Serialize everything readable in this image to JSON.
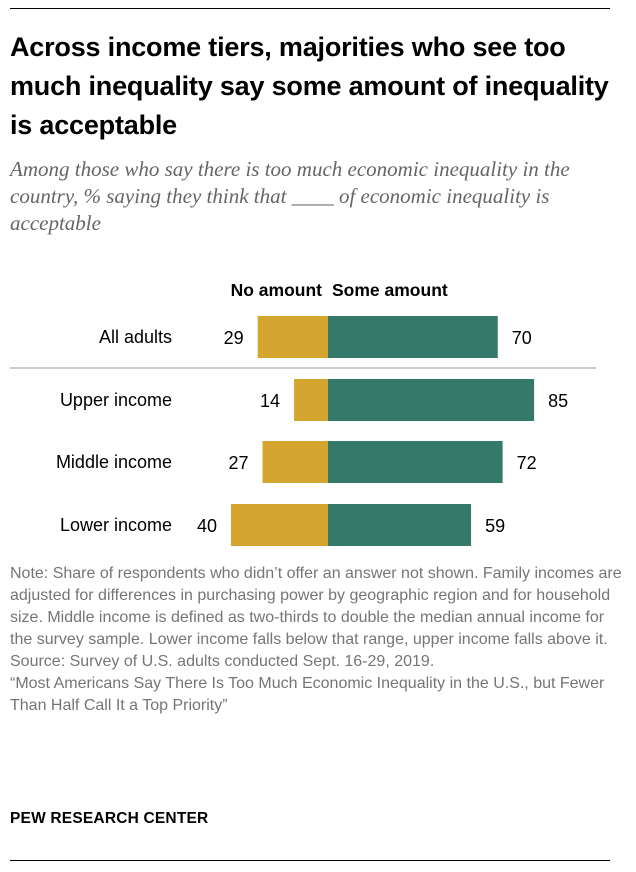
{
  "title": "Across income tiers, majorities who see too much inequality say some amount of inequality is acceptable",
  "subtitle": "Among those who say there is too much economic inequality in the country, % saying they think that ____ of economic inequality is acceptable",
  "chart_data": {
    "type": "bar",
    "orientation": "horizontal-diverging",
    "categories": [
      "All adults",
      "Upper income",
      "Middle income",
      "Lower income"
    ],
    "series": [
      {
        "name": "No amount",
        "values": [
          29,
          14,
          27,
          40
        ],
        "color": "#d4a630"
      },
      {
        "name": "Some amount",
        "values": [
          70,
          85,
          72,
          59
        ],
        "color": "#35796a"
      }
    ],
    "legend_placement": "top",
    "grid": false
  },
  "notes": {
    "note": "Note: Share of respondents who didn’t offer an answer not shown. Family incomes are adjusted for differences in purchasing power by geographic region and for household size. Middle income is defined as two-thirds to double the median annual income for the survey sample. Lower income falls below that range, upper income falls above it.",
    "source": "Source: Survey of U.S. adults conducted Sept. 16-29, 2019.",
    "report": "“Most Americans Say There Is Too Much Economic Inequality in the U.S., but Fewer Than Half Call It a Top Priority”"
  },
  "credit": "PEW RESEARCH CENTER"
}
